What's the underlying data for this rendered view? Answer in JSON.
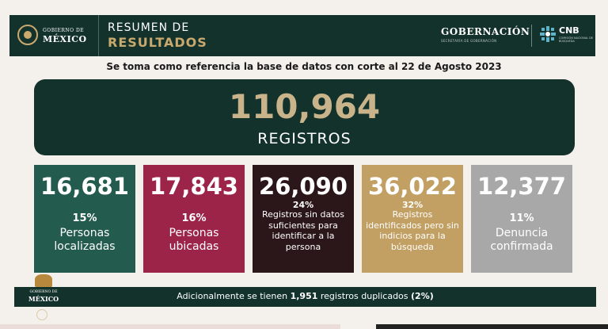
{
  "header": {
    "gob_logo_small": "GOBIERNO DE",
    "gob_logo_large": "MÉXICO",
    "summary_line1": "RESUMEN DE",
    "summary_line2": "RESULTADOS",
    "gobernacion": "GOBERNACIÓN",
    "gobernacion_sub": "SECRETARÍA DE GOBERNACIÓN",
    "cnb": "CNB",
    "cnb_sub": "COMISIÓN NACIONAL DE BÚSQUEDA"
  },
  "reference_note": "Se toma como referencia la base de datos con corte al 22 de Agosto 2023",
  "total": {
    "number": "110,964",
    "label": "REGISTROS"
  },
  "cards": [
    {
      "number": "16,681",
      "percent": "15%",
      "description": "Personas localizadas",
      "color": "#235b4e"
    },
    {
      "number": "17,843",
      "percent": "16%",
      "description": "Personas ubicadas",
      "color": "#9d2449"
    },
    {
      "number": "26,090",
      "percent": "24%",
      "description": "Registros sin datos suficientes para identificar a la persona",
      "color": "#2b1619"
    },
    {
      "number": "36,022",
      "percent": "32%",
      "description": "Registros identificados pero sin indicios para la búsqueda",
      "color": "#c29f62"
    },
    {
      "number": "12,377",
      "percent": "11%",
      "description": "Denuncia confirmada",
      "color": "#a8a8a8"
    }
  ],
  "footer": {
    "text_before": "Adicionalmente se tienen ",
    "duplicates_count": "1,951",
    "text_middle": " registros duplicados ",
    "duplicates_percent": "(2%)",
    "logo_small": "GOBIERNO DE",
    "logo_large": "MÉXICO"
  },
  "colors": {
    "header_bg": "#13322b",
    "gold": "#c9a96e",
    "page_bg": "#f4f1ec"
  },
  "icons": {
    "gob_emblem": "mexico-coat-of-arms-icon",
    "cnb_emblem": "cnb-star-icon"
  }
}
